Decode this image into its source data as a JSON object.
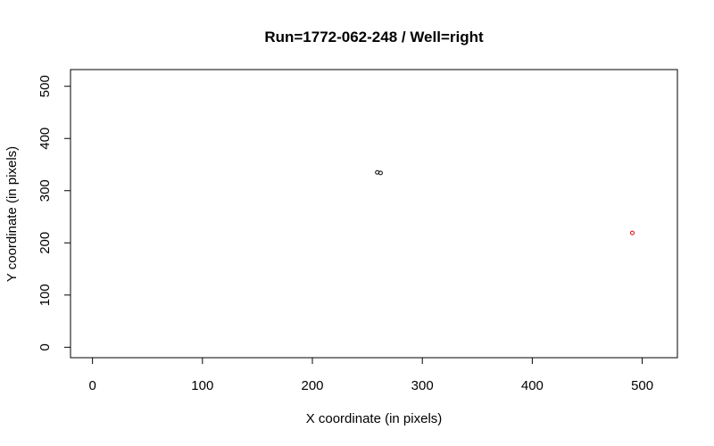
{
  "chart_data": {
    "type": "scatter",
    "title": "Run=1772-062-248 / Well=right",
    "xlabel": "X coordinate (in pixels)",
    "ylabel": "Y coordinate (in pixels)",
    "xlim": [
      -20,
      532
    ],
    "ylim": [
      -20,
      532
    ],
    "xticks": [
      0,
      100,
      200,
      300,
      400,
      500
    ],
    "yticks": [
      0,
      100,
      200,
      300,
      400,
      500
    ],
    "grid": false,
    "series": [
      {
        "color": "#000000",
        "points": [
          [
            259,
            335
          ],
          [
            262,
            334
          ]
        ]
      },
      {
        "color": "#dd0000",
        "points": [
          [
            491,
            219
          ]
        ]
      }
    ]
  }
}
